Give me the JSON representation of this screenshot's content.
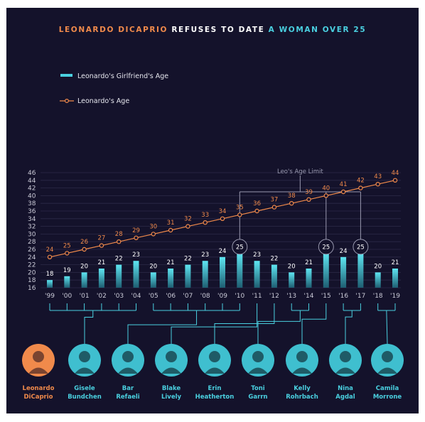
{
  "title": {
    "part1": "LEONARDO DICAPRIO",
    "part2": "REFUSES TO DATE",
    "part3": "A WOMAN OVER 25"
  },
  "colors": {
    "background": "#14122b",
    "orange": "#f08a4b",
    "cyan": "#4ad0e0",
    "grid": "#2c2a48",
    "text": "#c9c9d6"
  },
  "annotation": "Leo's Age Limit",
  "chart_data": {
    "type": "bar",
    "categories": [
      "'99",
      "'00",
      "'01",
      "'02",
      "'03",
      "'04",
      "'05",
      "'06",
      "'07",
      "'08",
      "'09",
      "'10",
      "'11",
      "'12",
      "'13",
      "'14",
      "'15",
      "'16",
      "'17",
      "'18",
      "'19"
    ],
    "yticks": [
      16,
      18,
      20,
      22,
      24,
      26,
      28,
      30,
      32,
      34,
      36,
      38,
      40,
      42,
      44,
      46
    ],
    "ylim": [
      16,
      46
    ],
    "grid": true,
    "legend_position": "top-left",
    "series": [
      {
        "name": "Leonardo's Girlfriend's Age",
        "kind": "bar",
        "color": "#4ad0e0",
        "values": [
          18,
          19,
          20,
          21,
          22,
          23,
          20,
          21,
          22,
          23,
          24,
          25,
          23,
          22,
          20,
          21,
          25,
          24,
          25,
          20,
          21
        ]
      },
      {
        "name": "Leonardo's Age",
        "kind": "line",
        "color": "#f08a4b",
        "values": [
          24,
          25,
          26,
          27,
          28,
          29,
          30,
          31,
          32,
          33,
          34,
          35,
          36,
          37,
          38,
          39,
          40,
          41,
          42,
          43,
          44
        ]
      }
    ],
    "age_limit_years": [
      "'10",
      "'15",
      "'17"
    ],
    "people": [
      {
        "first": "Leonardo",
        "last": "DiCaprio",
        "years": [],
        "highlight": true
      },
      {
        "first": "Gisele",
        "last": "Bundchen",
        "years": [
          "'99",
          "'00",
          "'01",
          "'02",
          "'03",
          "'04"
        ]
      },
      {
        "first": "Bar",
        "last": "Refaeli",
        "years": [
          "'05",
          "'06",
          "'07",
          "'08",
          "'09",
          "'10"
        ]
      },
      {
        "first": "Blake",
        "last": "Lively",
        "years": [
          "'11"
        ]
      },
      {
        "first": "Erin",
        "last": "Heatherton",
        "years": [
          "'12"
        ]
      },
      {
        "first": "Toni",
        "last": "Garrn",
        "years": [
          "'13",
          "'14"
        ]
      },
      {
        "first": "Kelly",
        "last": "Rohrbach",
        "years": [
          "'15"
        ]
      },
      {
        "first": "Nina",
        "last": "Agdal",
        "years": [
          "'16",
          "'17"
        ]
      },
      {
        "first": "Camila",
        "last": "Morrone",
        "years": [
          "'18",
          "'19"
        ]
      }
    ]
  }
}
